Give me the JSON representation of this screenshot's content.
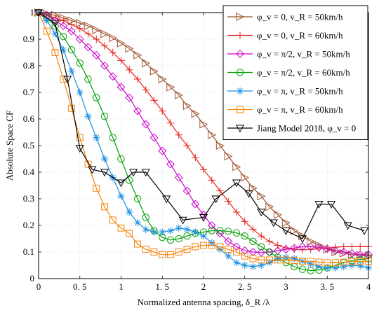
{
  "chart_data": {
    "type": "line",
    "xlabel": "Normalized antenna spacing, δ_R /λ",
    "ylabel": "Absolute Space CF",
    "xlim": [
      0,
      4
    ],
    "ylim": [
      0,
      1
    ],
    "xticks": [
      0,
      0.5,
      1,
      1.5,
      2,
      2.5,
      3,
      3.5,
      4
    ],
    "xtick_labels": [
      "0",
      "0. 5",
      "1",
      "1. 5",
      "2",
      "2. 5",
      "3",
      "3. 5",
      "4"
    ],
    "yticks": [
      0,
      0.1,
      0.2,
      0.3,
      0.4,
      0.5,
      0.6,
      0.7,
      0.8,
      0.9,
      1
    ],
    "ytick_labels": [
      "0",
      "0.1",
      "0.2",
      "0.3",
      "0.4",
      "0.5",
      "0.6",
      "0.7",
      "0.8",
      "0.9",
      "1"
    ],
    "grid": true,
    "legend_position": "top-right",
    "series": [
      {
        "name": "φ_v = 0, v_R = 50km/h",
        "color": "#a0522d",
        "marker": "triangle-right",
        "x": [
          0,
          0.1,
          0.2,
          0.3,
          0.4,
          0.5,
          0.6,
          0.7,
          0.8,
          0.9,
          1.0,
          1.1,
          1.2,
          1.3,
          1.4,
          1.5,
          1.6,
          1.7,
          1.8,
          1.9,
          2.0,
          2.1,
          2.2,
          2.3,
          2.4,
          2.5,
          2.6,
          2.7,
          2.8,
          2.9,
          3.0,
          3.1,
          3.2,
          3.3,
          3.4,
          3.5,
          3.6,
          3.7,
          3.8,
          3.9,
          4.0
        ],
        "y": [
          1.0,
          0.995,
          0.99,
          0.98,
          0.97,
          0.96,
          0.95,
          0.935,
          0.92,
          0.905,
          0.885,
          0.865,
          0.84,
          0.81,
          0.78,
          0.75,
          0.72,
          0.69,
          0.65,
          0.62,
          0.58,
          0.54,
          0.5,
          0.46,
          0.42,
          0.38,
          0.34,
          0.31,
          0.27,
          0.24,
          0.21,
          0.18,
          0.16,
          0.14,
          0.125,
          0.11,
          0.1,
          0.095,
          0.09,
          0.088,
          0.085
        ]
      },
      {
        "name": "φ_v = 0, v_R = 60km/h",
        "color": "#e8231c",
        "marker": "plus",
        "x": [
          0,
          0.1,
          0.2,
          0.3,
          0.4,
          0.5,
          0.6,
          0.7,
          0.8,
          0.9,
          1.0,
          1.1,
          1.2,
          1.3,
          1.4,
          1.5,
          1.6,
          1.7,
          1.8,
          1.9,
          2.0,
          2.1,
          2.2,
          2.3,
          2.4,
          2.5,
          2.6,
          2.7,
          2.8,
          2.9,
          3.0,
          3.1,
          3.2,
          3.3,
          3.4,
          3.5,
          3.6,
          3.7,
          3.8,
          3.9,
          4.0
        ],
        "y": [
          1.0,
          0.99,
          0.98,
          0.97,
          0.955,
          0.94,
          0.92,
          0.9,
          0.875,
          0.85,
          0.82,
          0.785,
          0.75,
          0.71,
          0.67,
          0.63,
          0.585,
          0.54,
          0.5,
          0.455,
          0.41,
          0.37,
          0.33,
          0.29,
          0.25,
          0.215,
          0.185,
          0.16,
          0.14,
          0.125,
          0.115,
          0.11,
          0.108,
          0.11,
          0.112,
          0.115,
          0.118,
          0.12,
          0.12,
          0.12,
          0.12
        ]
      },
      {
        "name": "φ_v = π/2, v_R = 50km/h",
        "color": "#cc00cc",
        "marker": "diamond",
        "x": [
          0,
          0.1,
          0.2,
          0.3,
          0.4,
          0.5,
          0.6,
          0.7,
          0.8,
          0.9,
          1.0,
          1.1,
          1.2,
          1.3,
          1.4,
          1.5,
          1.6,
          1.7,
          1.8,
          1.9,
          2.0,
          2.1,
          2.2,
          2.3,
          2.4,
          2.5,
          2.6,
          2.7,
          2.8,
          2.9,
          3.0,
          3.1,
          3.2,
          3.3,
          3.4,
          3.5,
          3.6,
          3.7,
          3.8,
          3.9,
          4.0
        ],
        "y": [
          1.0,
          0.99,
          0.97,
          0.95,
          0.93,
          0.9,
          0.87,
          0.84,
          0.8,
          0.76,
          0.72,
          0.68,
          0.63,
          0.58,
          0.53,
          0.48,
          0.43,
          0.38,
          0.33,
          0.28,
          0.24,
          0.2,
          0.17,
          0.14,
          0.12,
          0.105,
          0.1,
          0.098,
          0.1,
          0.105,
          0.11,
          0.115,
          0.12,
          0.12,
          0.118,
          0.112,
          0.105,
          0.1,
          0.095,
          0.09,
          0.09
        ]
      },
      {
        "name": "φ_v = π/2, v_R = 60km/h",
        "color": "#00a000",
        "marker": "circle",
        "x": [
          0,
          0.1,
          0.2,
          0.3,
          0.4,
          0.5,
          0.6,
          0.7,
          0.8,
          0.9,
          1.0,
          1.1,
          1.2,
          1.3,
          1.4,
          1.5,
          1.6,
          1.7,
          1.8,
          1.9,
          2.0,
          2.1,
          2.2,
          2.3,
          2.4,
          2.5,
          2.6,
          2.7,
          2.8,
          2.9,
          3.0,
          3.1,
          3.2,
          3.3,
          3.4,
          3.5,
          3.6,
          3.7,
          3.8,
          3.9,
          4.0
        ],
        "y": [
          1.0,
          0.98,
          0.95,
          0.91,
          0.86,
          0.81,
          0.75,
          0.68,
          0.61,
          0.53,
          0.45,
          0.37,
          0.3,
          0.23,
          0.18,
          0.155,
          0.145,
          0.15,
          0.16,
          0.17,
          0.175,
          0.18,
          0.18,
          0.178,
          0.172,
          0.16,
          0.14,
          0.12,
          0.1,
          0.08,
          0.06,
          0.045,
          0.035,
          0.03,
          0.032,
          0.04,
          0.05,
          0.06,
          0.068,
          0.072,
          0.075
        ]
      },
      {
        "name": "φ_v = π, v_R = 50km/h",
        "color": "#1e8fe0",
        "marker": "asterisk",
        "x": [
          0,
          0.1,
          0.2,
          0.3,
          0.4,
          0.5,
          0.6,
          0.7,
          0.8,
          0.9,
          1.0,
          1.1,
          1.2,
          1.3,
          1.4,
          1.5,
          1.6,
          1.7,
          1.8,
          1.9,
          2.0,
          2.1,
          2.2,
          2.3,
          2.4,
          2.5,
          2.6,
          2.7,
          2.8,
          2.9,
          3.0,
          3.1,
          3.2,
          3.3,
          3.4,
          3.5,
          3.6,
          3.7,
          3.8,
          3.9,
          4.0
        ],
        "y": [
          1.0,
          0.97,
          0.92,
          0.86,
          0.78,
          0.7,
          0.61,
          0.53,
          0.45,
          0.38,
          0.31,
          0.25,
          0.21,
          0.185,
          0.175,
          0.175,
          0.18,
          0.19,
          0.185,
          0.175,
          0.16,
          0.135,
          0.11,
          0.085,
          0.06,
          0.05,
          0.045,
          0.05,
          0.06,
          0.075,
          0.08,
          0.075,
          0.065,
          0.055,
          0.045,
          0.04,
          0.04,
          0.045,
          0.05,
          0.048,
          0.04
        ]
      },
      {
        "name": "φ_v = π, v_R = 60km/h",
        "color": "#f5820a",
        "marker": "square",
        "x": [
          0,
          0.1,
          0.2,
          0.3,
          0.4,
          0.5,
          0.6,
          0.7,
          0.8,
          0.9,
          1.0,
          1.1,
          1.2,
          1.3,
          1.4,
          1.5,
          1.6,
          1.7,
          1.8,
          1.9,
          2.0,
          2.1,
          2.2,
          2.3,
          2.4,
          2.5,
          2.6,
          2.7,
          2.8,
          2.9,
          3.0,
          3.1,
          3.2,
          3.3,
          3.4,
          3.5,
          3.6,
          3.7,
          3.8,
          3.9,
          4.0
        ],
        "y": [
          1.0,
          0.93,
          0.85,
          0.75,
          0.64,
          0.53,
          0.43,
          0.34,
          0.27,
          0.22,
          0.19,
          0.17,
          0.13,
          0.11,
          0.1,
          0.09,
          0.09,
          0.1,
          0.11,
          0.12,
          0.125,
          0.125,
          0.12,
          0.11,
          0.1,
          0.085,
          0.075,
          0.07,
          0.07,
          0.07,
          0.07,
          0.068,
          0.065,
          0.065,
          0.062,
          0.06,
          0.06,
          0.062,
          0.065,
          0.065,
          0.065
        ]
      },
      {
        "name": "Jiang Model 2018, φ_v = 0",
        "color": "#000000",
        "marker": "triangle-down",
        "x": [
          0,
          0.2,
          0.35,
          0.5,
          0.65,
          0.8,
          1.0,
          1.15,
          1.3,
          1.55,
          1.75,
          2.0,
          2.15,
          2.4,
          2.55,
          2.7,
          2.85,
          3.0,
          3.2,
          3.4,
          3.55,
          3.75,
          3.95
        ],
        "y": [
          1.0,
          0.96,
          0.75,
          0.49,
          0.41,
          0.4,
          0.36,
          0.4,
          0.4,
          0.3,
          0.22,
          0.23,
          0.3,
          0.36,
          0.32,
          0.25,
          0.21,
          0.18,
          0.15,
          0.28,
          0.28,
          0.2,
          0.18
        ]
      }
    ]
  }
}
